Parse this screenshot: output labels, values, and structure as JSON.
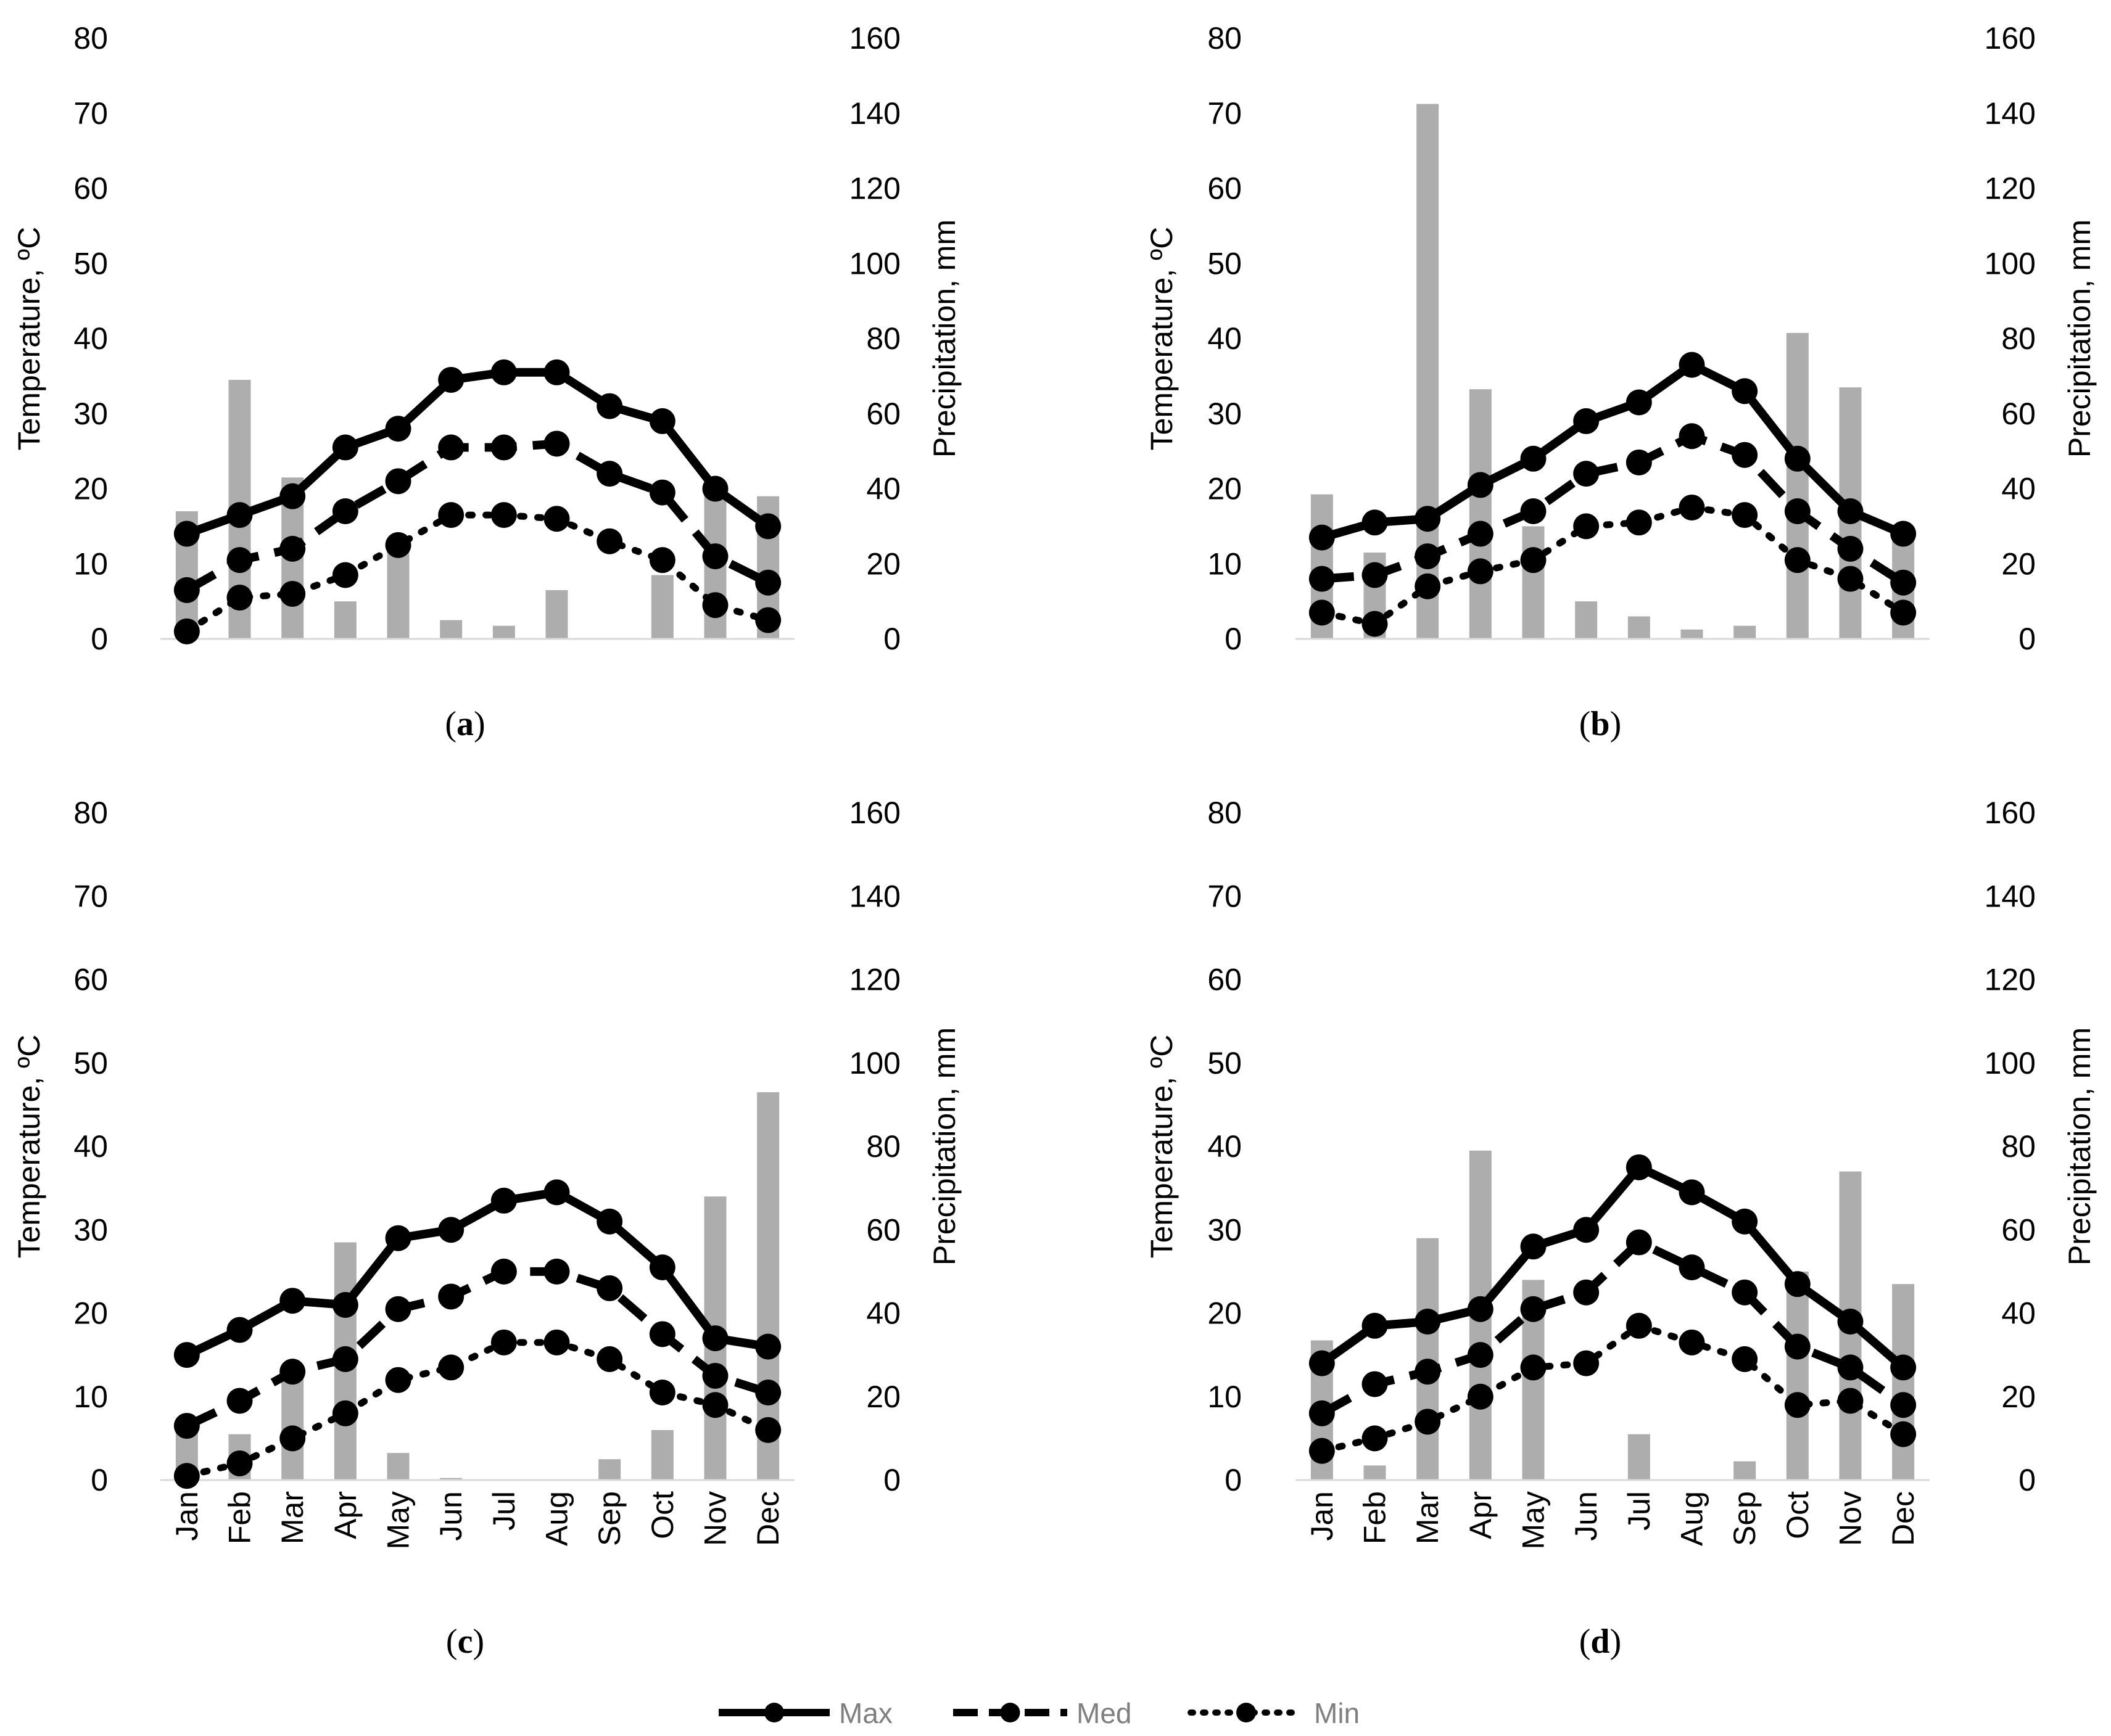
{
  "categories": [
    "Jan",
    "Feb",
    "Mar",
    "Apr",
    "May",
    "Jun",
    "Jul",
    "Aug",
    "Sep",
    "Oct",
    "Nov",
    "Dec"
  ],
  "legend": [
    {
      "name": "Max",
      "style": "solid"
    },
    {
      "name": "Med",
      "style": "dashed"
    },
    {
      "name": "Min",
      "style": "dotted"
    }
  ],
  "colors": {
    "line": "#000000",
    "bar": "#adadad",
    "legend_text": "#7f7f7f"
  },
  "chart_data": [
    {
      "type": "bar+line",
      "panel": "(a)",
      "ylabel": "Temperature, ºC",
      "y2label": "Precipitation, mm",
      "ylim": [
        0,
        80
      ],
      "y2lim": [
        0,
        160
      ],
      "yticks": [
        0,
        10,
        20,
        30,
        40,
        50,
        60,
        70,
        80
      ],
      "y2ticks": [
        0,
        20,
        40,
        60,
        80,
        100,
        120,
        140,
        160
      ],
      "show_xticks": false,
      "precipitation": [
        34,
        69,
        43,
        10,
        25,
        5,
        3.5,
        13,
        0,
        17,
        40,
        38
      ],
      "series": [
        {
          "name": "Max",
          "values": [
            14,
            16.5,
            19,
            25.5,
            28,
            34.5,
            35.5,
            35.5,
            31,
            29,
            20,
            15
          ]
        },
        {
          "name": "Med",
          "values": [
            6.5,
            10.5,
            12,
            17,
            21,
            25.5,
            25.5,
            26,
            22,
            19.5,
            11,
            7.5
          ]
        },
        {
          "name": "Min",
          "values": [
            1,
            5.5,
            6,
            8.5,
            12.5,
            16.5,
            16.5,
            16,
            13,
            10.5,
            4.5,
            2.5
          ]
        }
      ]
    },
    {
      "type": "bar+line",
      "panel": "(b)",
      "ylabel": "Temperature, ºC",
      "y2label": "Precipitation, mm",
      "ylim": [
        0,
        80
      ],
      "y2lim": [
        0,
        160
      ],
      "yticks": [
        0,
        10,
        20,
        30,
        40,
        50,
        60,
        70,
        80
      ],
      "y2ticks": [
        0,
        20,
        40,
        60,
        80,
        100,
        120,
        140,
        160
      ],
      "show_xticks": false,
      "precipitation": [
        38.5,
        23,
        142.5,
        66.5,
        30,
        10,
        6,
        2.5,
        3.5,
        81.5,
        67,
        30
      ],
      "series": [
        {
          "name": "Max",
          "values": [
            13.5,
            15.5,
            16,
            20.5,
            24,
            29,
            31.5,
            36.5,
            33,
            24,
            17,
            14
          ]
        },
        {
          "name": "Med",
          "values": [
            8,
            8.5,
            11,
            14,
            17,
            22,
            23.5,
            27,
            24.5,
            17,
            12,
            7.5
          ]
        },
        {
          "name": "Min",
          "values": [
            3.5,
            2,
            7,
            9,
            10.5,
            15,
            15.5,
            17.5,
            16.5,
            10.5,
            8,
            3.5
          ]
        }
      ]
    },
    {
      "type": "bar+line",
      "panel": "(c)",
      "ylabel": "Temperature, ºC",
      "y2label": "Precipitation, mm",
      "ylim": [
        0,
        80
      ],
      "y2lim": [
        0,
        160
      ],
      "yticks": [
        0,
        10,
        20,
        30,
        40,
        50,
        60,
        70,
        80
      ],
      "y2ticks": [
        0,
        20,
        40,
        60,
        80,
        100,
        120,
        140,
        160
      ],
      "show_xticks": true,
      "precipitation": [
        12,
        11,
        27,
        57,
        6.5,
        0.5,
        0,
        0,
        5,
        12,
        68,
        93
      ],
      "series": [
        {
          "name": "Max",
          "values": [
            15,
            18,
            21.5,
            21,
            29,
            30,
            33.5,
            34.5,
            31,
            25.5,
            17,
            16
          ]
        },
        {
          "name": "Med",
          "values": [
            6.5,
            9.5,
            13,
            14.5,
            20.5,
            22,
            25,
            25,
            23,
            17.5,
            12.5,
            10.5
          ]
        },
        {
          "name": "Min",
          "values": [
            0.5,
            2,
            5,
            8,
            12,
            13.5,
            16.5,
            16.5,
            14.5,
            10.5,
            9,
            6
          ]
        }
      ]
    },
    {
      "type": "bar+line",
      "panel": "(d)",
      "ylabel": "Temperature, ºC",
      "y2label": "Precipitation, mm",
      "ylim": [
        0,
        80
      ],
      "y2lim": [
        0,
        160
      ],
      "yticks": [
        0,
        10,
        20,
        30,
        40,
        50,
        60,
        70,
        80
      ],
      "y2ticks": [
        0,
        20,
        40,
        60,
        80,
        100,
        120,
        140,
        160
      ],
      "show_xticks": true,
      "precipitation": [
        33.5,
        3.5,
        58,
        79,
        48,
        0,
        11,
        0,
        4.5,
        50,
        74,
        47
      ],
      "series": [
        {
          "name": "Max",
          "values": [
            14,
            18.5,
            19,
            20.5,
            28,
            30,
            37.5,
            34.5,
            31,
            23.5,
            19,
            13.5
          ]
        },
        {
          "name": "Med",
          "values": [
            8,
            11.5,
            13,
            15,
            20.5,
            22.5,
            28.5,
            25.5,
            22.5,
            16,
            13.5,
            9
          ]
        },
        {
          "name": "Min",
          "values": [
            3.5,
            5,
            7,
            10,
            13.5,
            14,
            18.5,
            16.5,
            14.5,
            9,
            9.5,
            5.5
          ]
        }
      ]
    }
  ]
}
